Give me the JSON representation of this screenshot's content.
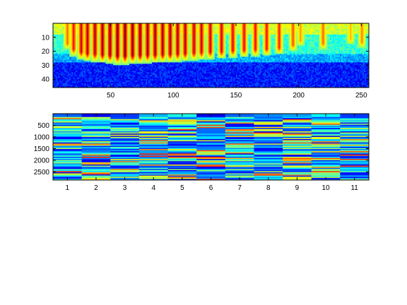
{
  "chart_data": [
    {
      "type": "heatmap",
      "colormap": "jet",
      "xlim": [
        4,
        256
      ],
      "ylim": [
        46,
        0
      ],
      "y_direction": "reversed",
      "xticks": [
        50,
        100,
        150,
        200,
        250
      ],
      "xtick_labels": [
        "50",
        "100",
        "150",
        "200",
        "250"
      ],
      "yticks": [
        10,
        20,
        30,
        40
      ],
      "ytick_labels": [
        "10",
        "20",
        "30",
        "40"
      ],
      "pulse_centers": [
        15,
        20,
        26,
        31,
        37,
        43,
        49,
        55,
        61,
        67,
        73,
        79,
        85,
        91,
        97,
        103,
        109,
        116,
        122,
        129,
        138,
        147,
        156,
        165,
        174,
        184,
        195,
        201,
        219,
        241,
        250
      ],
      "pulse_strength": [
        0.55,
        0.75,
        0.85,
        0.9,
        0.92,
        0.95,
        0.97,
        1.0,
        1.0,
        0.98,
        0.97,
        0.96,
        0.95,
        0.94,
        0.93,
        0.92,
        0.9,
        0.88,
        0.86,
        0.85,
        0.83,
        0.8,
        0.78,
        0.76,
        0.74,
        0.7,
        0.6,
        0.45,
        0.55,
        0.4,
        0.5
      ],
      "value_bands": [
        {
          "from_row": 1,
          "to_row": 8,
          "level": 0.58
        },
        {
          "from_row": 9,
          "to_row": 22,
          "level": 0.42
        },
        {
          "from_row": 23,
          "to_row": 28,
          "level": 0.3
        },
        {
          "from_row": 29,
          "to_row": 46,
          "level": 0.15
        }
      ]
    },
    {
      "type": "heatmap",
      "colormap": "jet",
      "xlim": [
        0.5,
        11.5
      ],
      "ylim": [
        2850,
        0
      ],
      "y_direction": "reversed",
      "columns": 11,
      "xticks": [
        1,
        2,
        3,
        4,
        5,
        6,
        7,
        8,
        9,
        10,
        11
      ],
      "xtick_labels": [
        "1",
        "2",
        "3",
        "4",
        "5",
        "6",
        "7",
        "8",
        "9",
        "10",
        "11"
      ],
      "yticks": [
        500,
        1000,
        1500,
        2000,
        2500
      ],
      "ytick_labels": [
        "500",
        "1000",
        "1500",
        "2000",
        "2500"
      ],
      "top_row_levels": [
        0.22,
        0.12,
        0.18,
        0.3,
        0.4,
        0.1,
        0.22,
        0.26,
        0.28,
        0.38,
        0.18
      ]
    }
  ]
}
